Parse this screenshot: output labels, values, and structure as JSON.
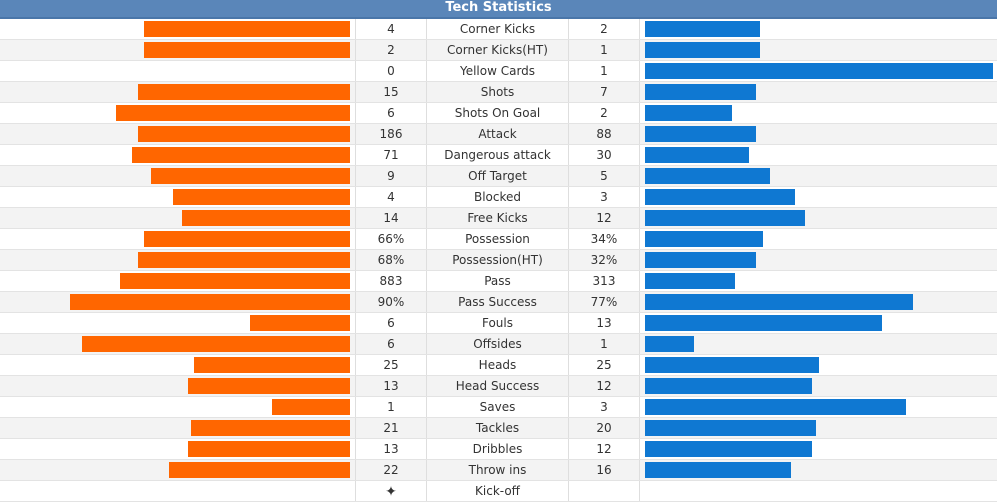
{
  "header": {
    "title": "Tech Statistics"
  },
  "colors": {
    "home_bar": "#ff6600",
    "away_bar": "#0f78d2",
    "header_bg": "#5a86b9"
  },
  "stats": [
    {
      "label": "Corner Kicks",
      "home": "4",
      "away": "2",
      "home_level": 0.66,
      "away_level": 0.33
    },
    {
      "label": "Corner Kicks(HT)",
      "home": "2",
      "away": "1",
      "home_level": 0.66,
      "away_level": 0.33
    },
    {
      "label": "Yellow Cards",
      "home": "0",
      "away": "1",
      "home_level": 0,
      "away_level": 1.0
    },
    {
      "label": "Shots",
      "home": "15",
      "away": "7",
      "home_level": 0.68,
      "away_level": 0.32
    },
    {
      "label": "Shots On Goal",
      "home": "6",
      "away": "2",
      "home_level": 0.75,
      "away_level": 0.25
    },
    {
      "label": "Attack",
      "home": "186",
      "away": "88",
      "home_level": 0.68,
      "away_level": 0.32
    },
    {
      "label": "Dangerous attack",
      "home": "71",
      "away": "30",
      "home_level": 0.7,
      "away_level": 0.3
    },
    {
      "label": "Off Target",
      "home": "9",
      "away": "5",
      "home_level": 0.64,
      "away_level": 0.36
    },
    {
      "label": "Blocked",
      "home": "4",
      "away": "3",
      "home_level": 0.57,
      "away_level": 0.43
    },
    {
      "label": "Free Kicks",
      "home": "14",
      "away": "12",
      "home_level": 0.54,
      "away_level": 0.46
    },
    {
      "label": "Possession",
      "home": "66%",
      "away": "34%",
      "home_level": 0.66,
      "away_level": 0.34
    },
    {
      "label": "Possession(HT)",
      "home": "68%",
      "away": "32%",
      "home_level": 0.68,
      "away_level": 0.32
    },
    {
      "label": "Pass",
      "home": "883",
      "away": "313",
      "home_level": 0.74,
      "away_level": 0.26
    },
    {
      "label": "Pass Success",
      "home": "90%",
      "away": "77%",
      "home_level": 0.9,
      "away_level": 0.77
    },
    {
      "label": "Fouls",
      "home": "6",
      "away": "13",
      "home_level": 0.32,
      "away_level": 0.68
    },
    {
      "label": "Offsides",
      "home": "6",
      "away": "1",
      "home_level": 0.86,
      "away_level": 0.14
    },
    {
      "label": "Heads",
      "home": "25",
      "away": "25",
      "home_level": 0.5,
      "away_level": 0.5
    },
    {
      "label": "Head Success",
      "home": "13",
      "away": "12",
      "home_level": 0.52,
      "away_level": 0.48
    },
    {
      "label": "Saves",
      "home": "1",
      "away": "3",
      "home_level": 0.25,
      "away_level": 0.75
    },
    {
      "label": "Tackles",
      "home": "21",
      "away": "20",
      "home_level": 0.51,
      "away_level": 0.49
    },
    {
      "label": "Dribbles",
      "home": "13",
      "away": "12",
      "home_level": 0.52,
      "away_level": 0.48
    },
    {
      "label": "Throw ins",
      "home": "22",
      "away": "16",
      "home_level": 0.58,
      "away_level": 0.42
    }
  ],
  "kickoff": {
    "label": "Kick-off",
    "icon": "kickoff-icon",
    "glyph": "✦"
  }
}
